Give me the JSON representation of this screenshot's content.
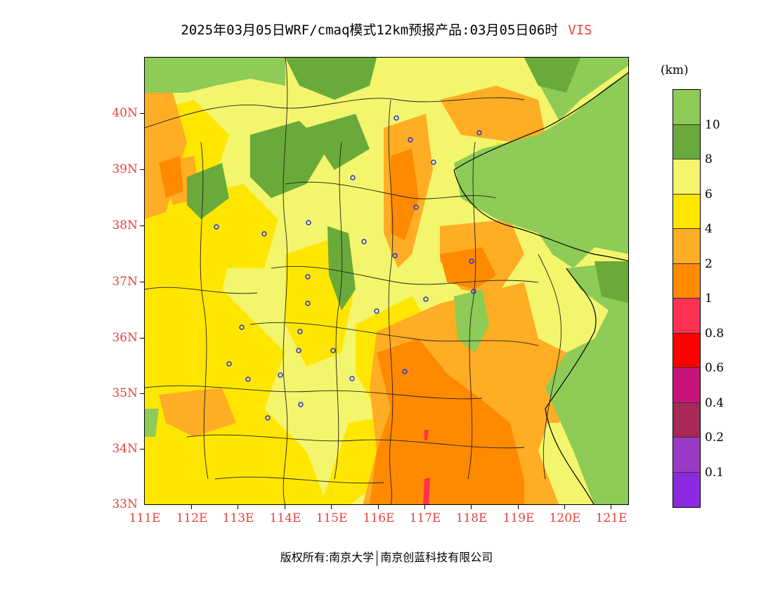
{
  "title": {
    "main": "2025年03月05日WRF/cmaq模式12km预报产品:03月05日06时",
    "variable": "VIS"
  },
  "unit": "(km)",
  "axes": {
    "lat_ticks": [
      "40N",
      "39N",
      "38N",
      "37N",
      "36N",
      "35N",
      "34N",
      "33N"
    ],
    "lon_ticks": [
      "111E",
      "112E",
      "113E",
      "114E",
      "115E",
      "116E",
      "117E",
      "118E",
      "119E",
      "120E",
      "121E"
    ],
    "lat_range": [
      33,
      41
    ],
    "lon_range": [
      111,
      121.35
    ]
  },
  "colorbar": {
    "levels": [
      "10",
      "8",
      "6",
      "4",
      "2",
      "1",
      "0.8",
      "0.6",
      "0.4",
      "0.2",
      "0.1"
    ],
    "colors": [
      "#8ecb57",
      "#6aaa3a",
      "#f3f56c",
      "#ffe600",
      "#ffad24",
      "#ff8a00",
      "#ff3152",
      "#ff0000",
      "#c8147a",
      "#a82858",
      "#9a3ac8",
      "#8a2be2"
    ]
  },
  "map": {
    "colors": {
      "good": "#8ecb57",
      "dark_green": "#6aaa3a",
      "light_yellow": "#f3f56c",
      "yellow": "#ffe600",
      "light_orange": "#ffad24",
      "orange": "#ff8a00",
      "pink": "#ff3152",
      "city_marker": "#2233dd"
    }
  },
  "footer": {
    "copyright": "版权所有:南京大学",
    "company": "南京创蓝科技有限公司"
  }
}
